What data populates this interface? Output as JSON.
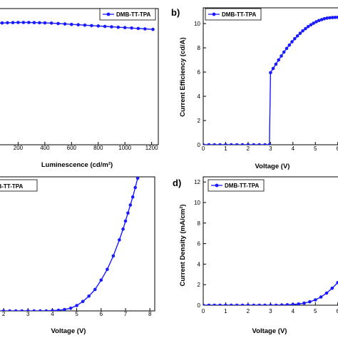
{
  "chart_data": [
    {
      "type": "line",
      "panel_label": "",
      "legend": "DMB-TT-TPA",
      "xlabel": "Luminescence (cd/m²)",
      "ylabel": "",
      "xticks": [
        "200",
        "400",
        "600",
        "800",
        "1000",
        "1200"
      ],
      "xlim": [
        0,
        1250
      ],
      "ylim": [
        0,
        10
      ],
      "series": [
        {
          "name": "DMB-TT-TPA",
          "x": [
            0,
            40,
            80,
            120,
            160,
            200,
            240,
            280,
            320,
            360,
            400,
            450,
            500,
            550,
            600,
            650,
            700,
            750,
            800,
            850,
            900,
            950,
            1000,
            1050,
            1100,
            1150,
            1210
          ],
          "y": [
            8.9,
            8.92,
            8.94,
            8.96,
            8.97,
            8.98,
            8.98,
            8.98,
            8.97,
            8.96,
            8.95,
            8.93,
            8.9,
            8.87,
            8.84,
            8.81,
            8.78,
            8.75,
            8.72,
            8.69,
            8.66,
            8.63,
            8.6,
            8.57,
            8.54,
            8.51,
            8.47
          ]
        }
      ]
    },
    {
      "type": "line",
      "panel_label": "b)",
      "legend": "DMB-TT-TPA",
      "xlabel": "Voltage (V)",
      "ylabel": "Current Efficiency (cd/A)",
      "xticks": [
        "0",
        "1",
        "2",
        "3",
        "4",
        "5",
        "6"
      ],
      "yticks": [
        "0",
        "2",
        "4",
        "6",
        "8",
        "10"
      ],
      "xlim": [
        0,
        6.2
      ],
      "ylim": [
        0,
        11.3
      ],
      "series": [
        {
          "name": "DMB-TT-TPA",
          "x": [
            0,
            0.25,
            0.5,
            0.75,
            1.0,
            1.25,
            1.5,
            1.75,
            2.0,
            2.25,
            2.5,
            2.75,
            2.95,
            3.0,
            3.12,
            3.24,
            3.36,
            3.48,
            3.6,
            3.72,
            3.84,
            3.96,
            4.08,
            4.2,
            4.32,
            4.44,
            4.56,
            4.68,
            4.8,
            4.92,
            5.04,
            5.16,
            5.28,
            5.4,
            5.52,
            5.64,
            5.76,
            5.88,
            6.0,
            6.12
          ],
          "y": [
            0,
            0,
            0,
            0,
            0,
            0,
            0,
            0,
            0,
            0,
            0,
            0,
            0,
            5.95,
            6.3,
            6.65,
            7.0,
            7.33,
            7.65,
            7.95,
            8.23,
            8.5,
            8.75,
            8.98,
            9.2,
            9.4,
            9.58,
            9.75,
            9.9,
            10.03,
            10.15,
            10.25,
            10.33,
            10.4,
            10.45,
            10.48,
            10.5,
            10.51,
            10.52,
            10.52
          ]
        }
      ]
    },
    {
      "type": "line",
      "panel_label": "",
      "legend": "DMB-TT-TPA",
      "xlabel": "Voltage (V)",
      "ylabel": "",
      "xticks": [
        "2",
        "3",
        "4",
        "5",
        "6",
        "7",
        "8"
      ],
      "xlim": [
        1.5,
        8.2
      ],
      "ylim": [
        0,
        10
      ],
      "series": [
        {
          "name": "DMB-TT-TPA",
          "x": [
            1.5,
            1.75,
            2.0,
            2.25,
            2.5,
            2.75,
            3.0,
            3.25,
            3.5,
            3.75,
            4.0,
            4.25,
            4.5,
            4.75,
            5.0,
            5.25,
            5.5,
            5.75,
            6.0,
            6.25,
            6.5,
            6.75,
            6.9,
            7.0,
            7.1,
            7.2,
            7.3,
            7.4,
            7.5
          ],
          "y": [
            0,
            0,
            0,
            0,
            0,
            0,
            0,
            0,
            0,
            0,
            0.02,
            0.05,
            0.1,
            0.2,
            0.4,
            0.7,
            1.1,
            1.6,
            2.3,
            3.1,
            4.1,
            5.3,
            6.1,
            6.7,
            7.3,
            7.9,
            8.5,
            9.2,
            9.9
          ]
        }
      ]
    },
    {
      "type": "line",
      "panel_label": "d)",
      "legend": "DMB-TT-TPA",
      "xlabel": "Voltage (V)",
      "ylabel": "Current Density (mA/cm²)",
      "xticks": [
        "0",
        "1",
        "2",
        "3",
        "4",
        "5",
        "6"
      ],
      "yticks": [
        "0",
        "2",
        "4",
        "6",
        "8",
        "10",
        "12"
      ],
      "xlim": [
        0,
        6.2
      ],
      "ylim": [
        0,
        12.5
      ],
      "series": [
        {
          "name": "DMB-TT-TPA",
          "x": [
            0,
            0.25,
            0.5,
            0.75,
            1.0,
            1.25,
            1.5,
            1.75,
            2.0,
            2.25,
            2.5,
            2.75,
            3.0,
            3.25,
            3.5,
            3.75,
            4.0,
            4.25,
            4.5,
            4.75,
            5.0,
            5.25,
            5.5,
            5.75,
            6.0,
            6.2
          ],
          "y": [
            0,
            0,
            0,
            0,
            0,
            0,
            0,
            0,
            0,
            0,
            0,
            0,
            0,
            0,
            0.02,
            0.04,
            0.07,
            0.12,
            0.2,
            0.33,
            0.52,
            0.8,
            1.18,
            1.65,
            2.2,
            2.75
          ]
        }
      ]
    }
  ]
}
